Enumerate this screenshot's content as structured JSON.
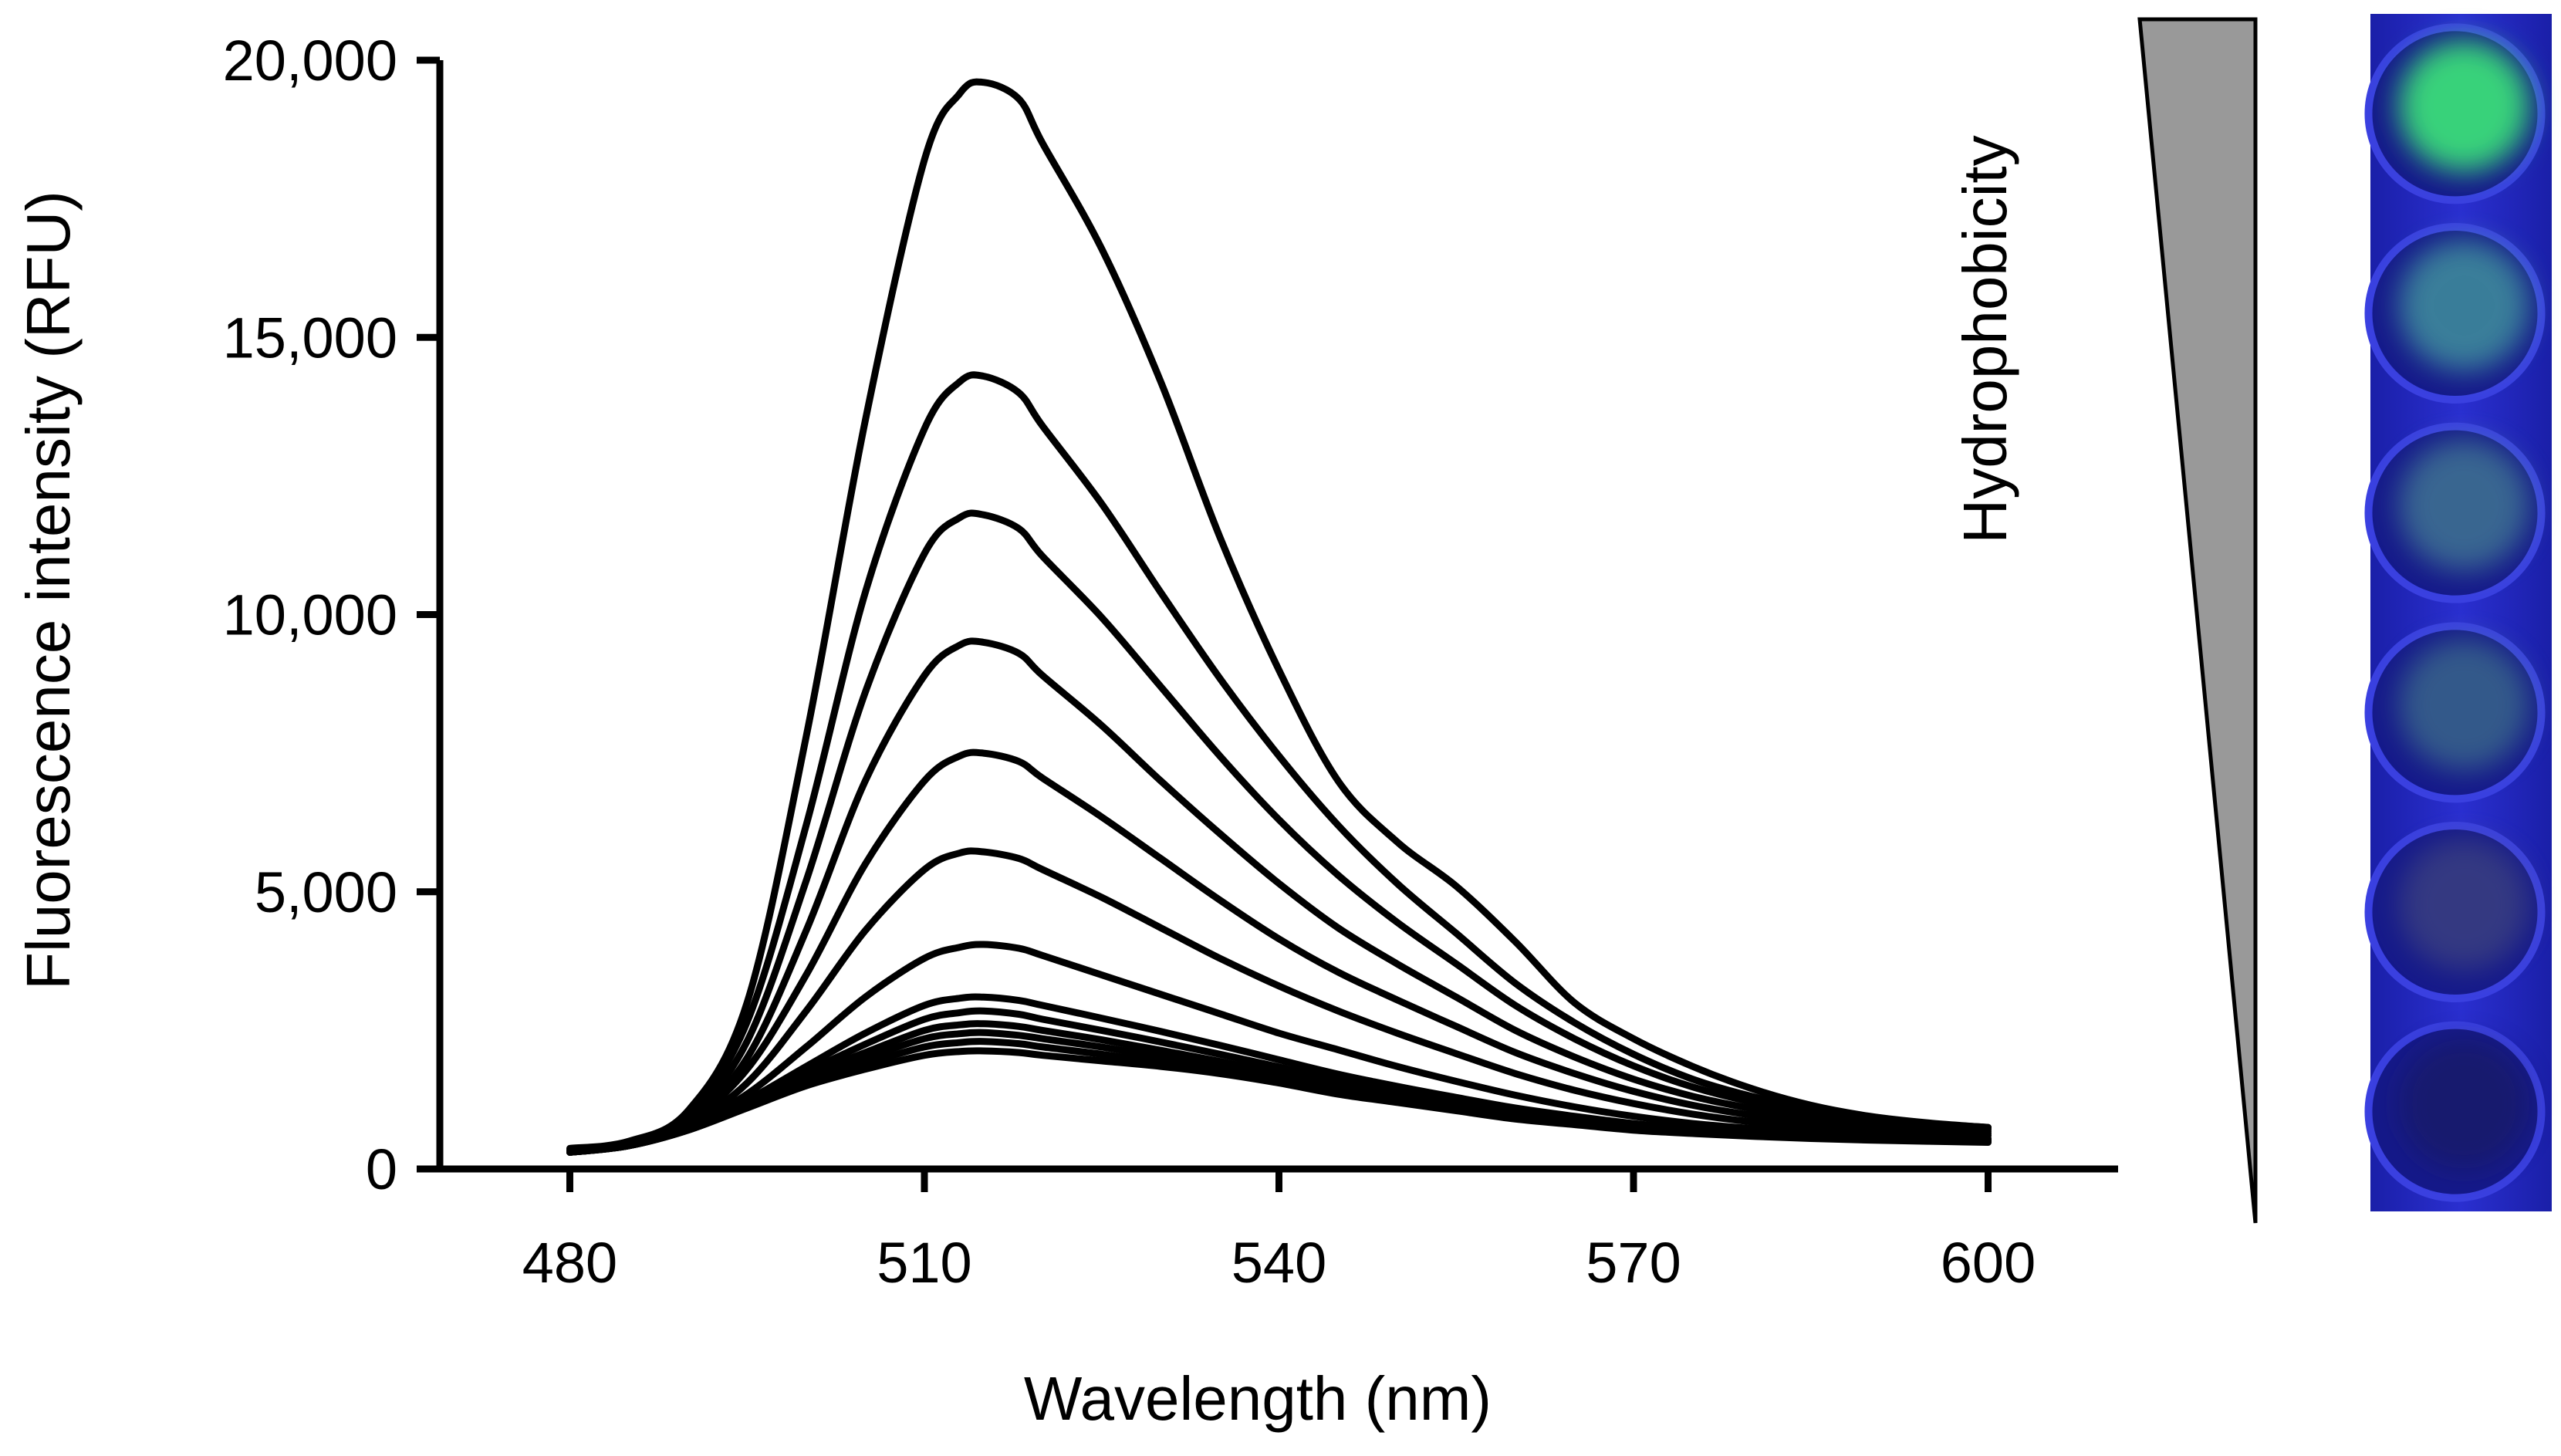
{
  "chart_data": {
    "type": "line",
    "title": "",
    "xlabel": "Wavelength (nm)",
    "ylabel": "Fluorescence intensity (RFU)",
    "xlim": [
      469,
      611
    ],
    "ylim": [
      0,
      20000
    ],
    "xticks": [
      480,
      510,
      540,
      570,
      600
    ],
    "xtick_labels": [
      "480",
      "510",
      "540",
      "570",
      "600"
    ],
    "yticks": [
      0,
      5000,
      10000,
      15000,
      20000
    ],
    "ytick_labels": [
      "0",
      "5,000",
      "10,000",
      "15,000",
      "20,000"
    ],
    "grid": false,
    "legend": "none",
    "line_color": "#000000",
    "x": [
      480,
      485,
      490,
      495,
      500,
      505,
      510,
      513,
      515,
      518,
      520,
      525,
      530,
      535,
      540,
      545,
      550,
      555,
      560,
      565,
      570,
      575,
      580,
      585,
      590,
      595,
      600
    ],
    "series": [
      {
        "values": [
          300,
          420,
          700,
          1100,
          1500,
          1800,
          2050,
          2120,
          2130,
          2100,
          2050,
          1950,
          1850,
          1720,
          1550,
          1350,
          1200,
          1050,
          900,
          800,
          700,
          640,
          590,
          550,
          520,
          500,
          480
        ]
      },
      {
        "values": [
          300,
          420,
          700,
          1120,
          1560,
          1900,
          2200,
          2280,
          2300,
          2260,
          2200,
          2070,
          1920,
          1760,
          1590,
          1390,
          1230,
          1080,
          930,
          820,
          720,
          650,
          600,
          560,
          530,
          505,
          490
        ]
      },
      {
        "values": [
          300,
          420,
          710,
          1150,
          1620,
          2000,
          2350,
          2440,
          2460,
          2410,
          2350,
          2200,
          2030,
          1850,
          1660,
          1450,
          1280,
          1120,
          960,
          840,
          740,
          670,
          610,
          570,
          540,
          515,
          500
        ]
      },
      {
        "values": [
          300,
          420,
          710,
          1170,
          1680,
          2100,
          2500,
          2600,
          2620,
          2570,
          2500,
          2330,
          2140,
          1940,
          1730,
          1510,
          1330,
          1160,
          990,
          860,
          760,
          680,
          620,
          580,
          550,
          525,
          510
        ]
      },
      {
        "values": [
          300,
          420,
          720,
          1200,
          1750,
          2250,
          2700,
          2820,
          2850,
          2790,
          2700,
          2500,
          2290,
          2070,
          1840,
          1600,
          1400,
          1220,
          1040,
          900,
          790,
          700,
          640,
          590,
          560,
          535,
          520
        ]
      },
      {
        "values": [
          300,
          420,
          730,
          1240,
          1850,
          2450,
          2950,
          3080,
          3100,
          3040,
          2950,
          2720,
          2480,
          2230,
          1970,
          1710,
          1490,
          1290,
          1100,
          950,
          820,
          720,
          650,
          600,
          570,
          545,
          530
        ]
      },
      {
        "values": [
          300,
          430,
          750,
          1350,
          2200,
          3100,
          3800,
          4000,
          4050,
          3980,
          3850,
          3500,
          3150,
          2800,
          2450,
          2150,
          1850,
          1580,
          1330,
          1120,
          950,
          820,
          730,
          660,
          610,
          575,
          550
        ]
      },
      {
        "values": [
          310,
          440,
          800,
          1550,
          2850,
          4300,
          5400,
          5700,
          5720,
          5600,
          5400,
          4900,
          4350,
          3800,
          3300,
          2850,
          2450,
          2080,
          1720,
          1420,
          1180,
          990,
          850,
          750,
          680,
          630,
          600
        ]
      },
      {
        "values": [
          320,
          450,
          850,
          1800,
          3500,
          5500,
          7000,
          7450,
          7500,
          7350,
          7050,
          6350,
          5600,
          4850,
          4150,
          3550,
          3050,
          2570,
          2100,
          1720,
          1400,
          1150,
          970,
          840,
          750,
          680,
          640
        ]
      },
      {
        "values": [
          330,
          460,
          900,
          2000,
          4300,
          7000,
          8900,
          9450,
          9500,
          9300,
          8900,
          8000,
          7000,
          6050,
          5150,
          4350,
          3700,
          3100,
          2500,
          2020,
          1620,
          1310,
          1090,
          930,
          810,
          730,
          680
        ]
      },
      {
        "values": [
          340,
          470,
          950,
          2300,
          5200,
          8600,
          11100,
          11750,
          11800,
          11550,
          11050,
          9950,
          8700,
          7450,
          6300,
          5300,
          4450,
          3700,
          2950,
          2350,
          1860,
          1480,
          1210,
          1020,
          880,
          780,
          720
        ]
      },
      {
        "values": [
          350,
          480,
          1000,
          2650,
          6200,
          10400,
          13350,
          14200,
          14300,
          14000,
          13400,
          12000,
          10400,
          8850,
          7450,
          6200,
          5150,
          4250,
          3350,
          2640,
          2070,
          1620,
          1310,
          1090,
          930,
          820,
          750
        ]
      },
      {
        "values": [
          370,
          500,
          1050,
          3000,
          7800,
          13500,
          18200,
          19400,
          19600,
          19300,
          18500,
          16600,
          14200,
          11400,
          9000,
          7000,
          5900,
          5100,
          4100,
          3000,
          2350,
          1850,
          1450,
          1150,
          950,
          830,
          750
        ]
      }
    ]
  },
  "side_panel": {
    "wedge_label": "Hydrophobicity",
    "wedge_color": "#999999",
    "wells_background": "#1e24b8",
    "wells": [
      {
        "glow": "#37d27a",
        "level": 1.0
      },
      {
        "glow": "#4aa7a0",
        "level": 0.55
      },
      {
        "glow": "#4f9595",
        "level": 0.42
      },
      {
        "glow": "#4c8c8a",
        "level": 0.32
      },
      {
        "glow": "#5a6078",
        "level": 0.15
      },
      {
        "glow": "#1a1a3a",
        "level": 0.0
      }
    ]
  }
}
